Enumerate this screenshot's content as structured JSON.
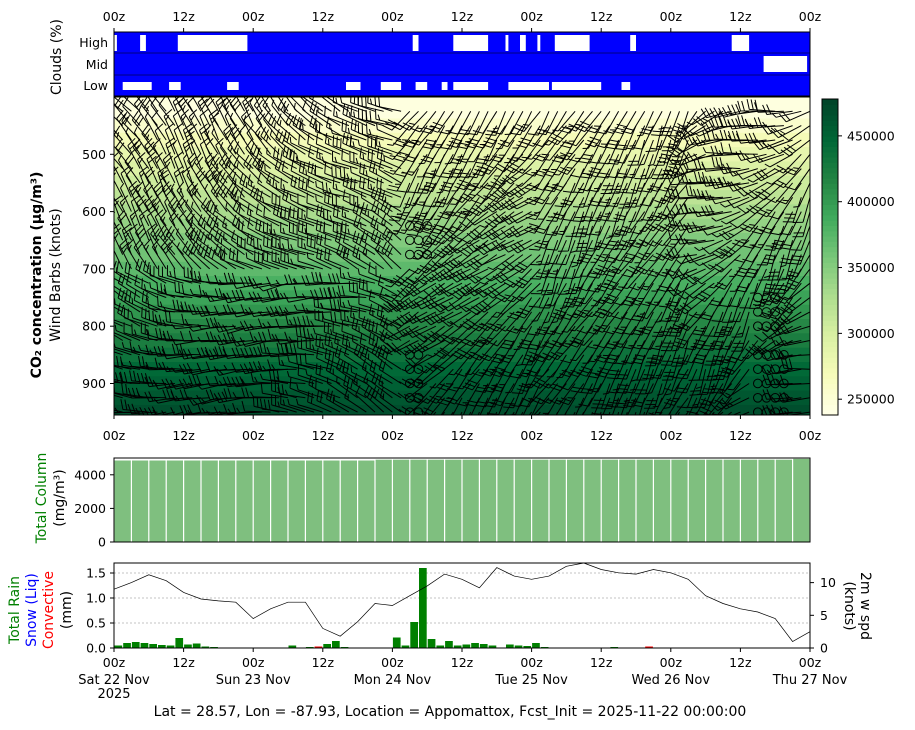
{
  "time_axis": {
    "tick_labels": [
      "00z",
      "12z",
      "00z",
      "12z",
      "00z",
      "12z",
      "00z",
      "12z",
      "00z",
      "12z",
      "00z"
    ],
    "date_labels": [
      "Sat 22 Nov",
      "Sun 23 Nov",
      "Mon 24 Nov",
      "Tue 25 Nov",
      "Wed 26 Nov",
      "Thu 27 Nov"
    ],
    "year_label": "2025"
  },
  "clouds": {
    "ylabel": "Clouds (%)",
    "layers": [
      "High",
      "Mid",
      "Low"
    ],
    "colors": {
      "background": "#0000ff",
      "cloud": "#ffffff"
    }
  },
  "main": {
    "ylabel_bold": "CO₂ concentration (μg/m³)",
    "ylabel_sub": "Wind Barbs (knots)",
    "yticks": [
      500,
      600,
      700,
      800,
      900
    ],
    "colorbar": {
      "ticks": [
        250000,
        300000,
        350000,
        400000,
        450000
      ],
      "range": [
        238000,
        478000
      ],
      "colormap": "YlGn"
    }
  },
  "column": {
    "ylabel_line1": "Total Column",
    "ylabel_line2": "(mg/m³)",
    "yticks": [
      0,
      2000,
      4000
    ],
    "color": "#7fbf7f"
  },
  "precip": {
    "label_rain": "Total Rain",
    "label_snow": "Snow (Liq)",
    "label_conv": "Convective",
    "label_unit": "(mm)",
    "yticks": [
      "0.0",
      "0.5",
      "1.0",
      "1.5"
    ],
    "right_label_line1": "2m w spd",
    "right_label_line2": "(knots)",
    "right_yticks": [
      "0",
      "5",
      "10"
    ],
    "colors": {
      "rain": "#008000",
      "snow": "#0000ff",
      "convective": "#ff0000",
      "wind": "#000000"
    }
  },
  "footer": "Lat = 28.57, Lon = -87.93, Location = Appomattox, Fcst_Init = 2025-11-22 00:00:00",
  "chart_data": [
    {
      "type": "heatmap",
      "name": "clouds",
      "x": [
        "2025-11-22T00Z",
        "2025-11-27T00Z"
      ],
      "rows": [
        "High",
        "Mid",
        "Low"
      ],
      "notes_from_image": "mostly 100% cover; brief clear gaps",
      "clear_gaps_hours": {
        "High": [
          [
            0,
            1
          ],
          [
            9,
            11
          ],
          [
            22,
            46
          ],
          [
            103,
            105
          ],
          [
            117,
            129
          ],
          [
            135,
            136
          ],
          [
            140,
            142
          ],
          [
            146,
            147
          ],
          [
            150,
            149
          ],
          [
            152,
            164
          ],
          [
            178,
            180
          ],
          [
            213,
            219
          ]
        ],
        "Mid": [
          [
            224,
            239
          ]
        ],
        "Low": [
          [
            3,
            13
          ],
          [
            19,
            23
          ],
          [
            39,
            43
          ],
          [
            80,
            85
          ],
          [
            92,
            99
          ],
          [
            104,
            108
          ],
          [
            113,
            115
          ],
          [
            117,
            129
          ],
          [
            136,
            150
          ],
          [
            151,
            168
          ],
          [
            175,
            178
          ]
        ]
      }
    },
    {
      "type": "heatmap",
      "name": "co2_concentration",
      "xlim": [
        "2025-11-22T00Z",
        "2025-11-27T00Z"
      ],
      "ylim": [
        955,
        400
      ],
      "y_levels_hpa": [
        425,
        450,
        475,
        500,
        525,
        550,
        575,
        600,
        625,
        650,
        675,
        700,
        725,
        750,
        775,
        800,
        825,
        850,
        875,
        900,
        925,
        950
      ],
      "values": [
        242000,
        255000,
        270000,
        283000,
        295000,
        306000,
        318000,
        330000,
        342000,
        353000,
        362000,
        372000,
        383000,
        394000,
        405000,
        415000,
        425000,
        436000,
        447000,
        455000,
        463000,
        470000
      ],
      "zlim": [
        238000,
        478000
      ]
    },
    {
      "type": "bar",
      "name": "total_column",
      "x_hours": [
        0,
        6,
        12,
        18,
        24,
        30,
        36,
        42,
        48,
        54,
        60,
        66,
        72,
        78,
        84,
        90,
        96,
        102,
        108,
        114,
        120,
        126,
        132,
        138,
        144,
        150,
        156,
        162,
        168,
        174,
        180,
        186,
        192,
        198,
        204,
        210,
        216,
        222,
        228,
        234
      ],
      "values": [
        4850,
        4850,
        4850,
        4850,
        4850,
        4850,
        4850,
        4850,
        4850,
        4850,
        4850,
        4850,
        4850,
        4850,
        4850,
        4900,
        4900,
        4900,
        4900,
        4900,
        4900,
        4900,
        4900,
        4900,
        4900,
        4900,
        4900,
        4900,
        4900,
        4900,
        4900,
        4900,
        4900,
        4900,
        4900,
        4900,
        4900,
        4900,
        4900,
        4950
      ],
      "ylim": [
        0,
        5000
      ]
    },
    {
      "type": "bar",
      "name": "precip",
      "series": [
        {
          "name": "Total Rain",
          "x_hours": [
            0,
            3,
            6,
            9,
            12,
            15,
            18,
            21,
            24,
            27,
            30,
            33,
            36,
            39,
            42,
            45,
            48,
            51,
            54,
            57,
            60,
            63,
            66,
            69,
            72,
            75,
            78,
            81,
            84,
            87,
            90,
            93,
            96,
            99,
            102,
            105,
            108,
            111,
            114,
            117,
            120,
            123,
            126,
            129,
            132,
            135,
            138,
            141,
            144,
            147,
            150,
            153,
            156,
            159,
            162,
            165,
            168,
            171,
            174,
            177,
            180,
            183,
            186,
            189,
            192,
            195,
            198,
            201,
            204,
            207,
            210,
            213,
            216,
            219,
            222,
            225,
            228,
            231,
            234,
            237
          ],
          "values": [
            0.05,
            0.1,
            0.12,
            0.1,
            0.08,
            0.06,
            0.05,
            0.2,
            0.07,
            0.09,
            0.03,
            0.02,
            0.0,
            0.0,
            0.0,
            0.0,
            0.0,
            0.0,
            0.0,
            0.0,
            0.05,
            0.0,
            0.02,
            0.0,
            0.08,
            0.14,
            0.02,
            0.0,
            0.0,
            0.0,
            0.0,
            0.0,
            0.21,
            0.05,
            0.52,
            1.6,
            0.18,
            0.05,
            0.14,
            0.05,
            0.07,
            0.1,
            0.08,
            0.05,
            0.0,
            0.07,
            0.05,
            0.04,
            0.1,
            0.02,
            0.0,
            0.0,
            0.0,
            0.0,
            0.0,
            0.0,
            0.0,
            0.02,
            0.0,
            0.0,
            0.0,
            0.0,
            0.0,
            0.0,
            0.0,
            0.0,
            0.0,
            0.0,
            0.0,
            0.0,
            0.0,
            0.0,
            0.0,
            0.0,
            0.0,
            0.0,
            0.0,
            0.0,
            0.0,
            0.0
          ]
        },
        {
          "name": "Convective",
          "x_hours": [
            69,
            183
          ],
          "values": [
            0.03,
            0.03
          ]
        },
        {
          "name": "2m w spd",
          "x_hours": [
            0,
            6,
            12,
            18,
            24,
            30,
            36,
            42,
            48,
            54,
            60,
            66,
            72,
            78,
            84,
            90,
            96,
            102,
            108,
            114,
            120,
            126,
            132,
            138,
            144,
            150,
            156,
            162,
            168,
            174,
            180,
            186,
            192,
            198,
            204,
            210,
            216,
            222,
            228,
            234,
            240
          ],
          "values": [
            9.0,
            10.0,
            11.2,
            10.3,
            8.5,
            7.5,
            7.2,
            7.0,
            4.5,
            6.0,
            7.0,
            7.0,
            3.0,
            1.8,
            4.0,
            6.8,
            6.5,
            8.0,
            9.5,
            11.3,
            10.5,
            9.2,
            12.3,
            11.0,
            10.5,
            11.0,
            12.5,
            13.0,
            12.0,
            11.5,
            11.3,
            12.0,
            11.5,
            10.5,
            8.0,
            6.8,
            6.0,
            5.5,
            4.5,
            1.0,
            2.5
          ],
          "ylim": [
            0,
            13
          ]
        }
      ],
      "ylim": [
        0,
        1.7
      ]
    }
  ]
}
